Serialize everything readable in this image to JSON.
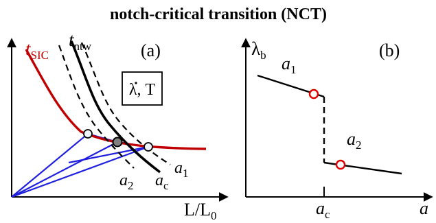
{
  "figure": {
    "title": "notch-critical transition (NCT)",
    "panel_a": {
      "tag": "(a)",
      "y_label": {
        "base": "t",
        "sub": "SIC"
      },
      "curve_label": {
        "base": "t",
        "sub": "ntw"
      },
      "x_label": {
        "base": "L/L",
        "sub": "0"
      },
      "box_label": {
        "main": "λ",
        "rest": ", T"
      },
      "branch_labels": {
        "a1": {
          "base": "a",
          "sub": "1"
        },
        "a2": {
          "base": "a",
          "sub": "2"
        },
        "ac": {
          "base": "a",
          "sub": "c"
        }
      }
    },
    "panel_b": {
      "tag": "(b)",
      "y_label": {
        "base": "λ",
        "sub": "b"
      },
      "x_label": "a",
      "x_tick": {
        "base": "a",
        "sub": "c"
      },
      "branch_labels": {
        "a1": {
          "base": "a",
          "sub": "1"
        },
        "a2": {
          "base": "a",
          "sub": "2"
        }
      }
    },
    "colors": {
      "axis": "#000000",
      "t_sic_curve": "#c00000",
      "rays": "#1f1fe0",
      "marker_outline_b": "#e00000",
      "marker_fill_a": "#eef4ff",
      "marker_fill_critical": "#808080"
    }
  }
}
